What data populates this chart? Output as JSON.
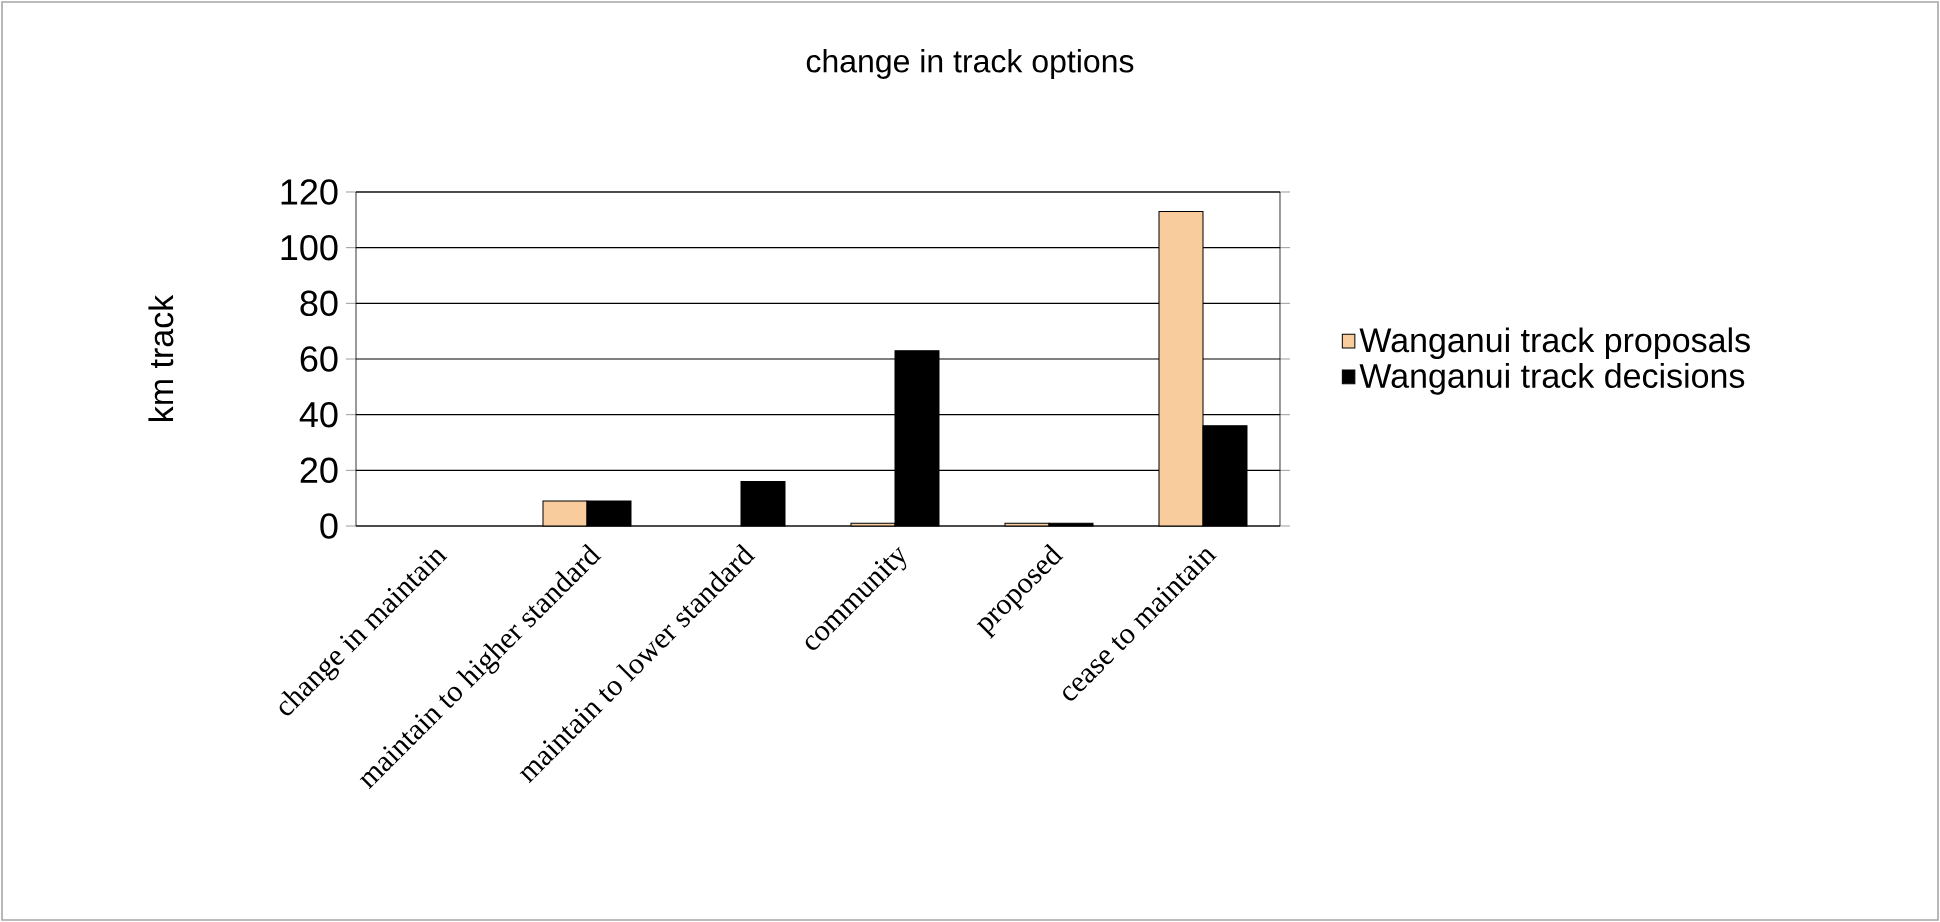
{
  "chart_data": {
    "type": "bar",
    "title": "change in track options",
    "ylabel": "km track",
    "categories": [
      "change in maintain",
      "maintain to higher standard",
      "maintain to lower standard",
      "community",
      "proposed",
      "cease to maintain"
    ],
    "series": [
      {
        "name": "Wanganui track proposals",
        "color": "#f9cc9d",
        "values": [
          0,
          9,
          0,
          1,
          1,
          113
        ]
      },
      {
        "name": "Wanganui track decisions",
        "color": "#000000",
        "values": [
          0,
          9,
          16,
          63,
          1,
          36
        ]
      }
    ],
    "ylim": [
      0,
      120
    ],
    "yticks": [
      0,
      20,
      40,
      60,
      80,
      100,
      120
    ],
    "grid": "y",
    "legend": "right"
  }
}
